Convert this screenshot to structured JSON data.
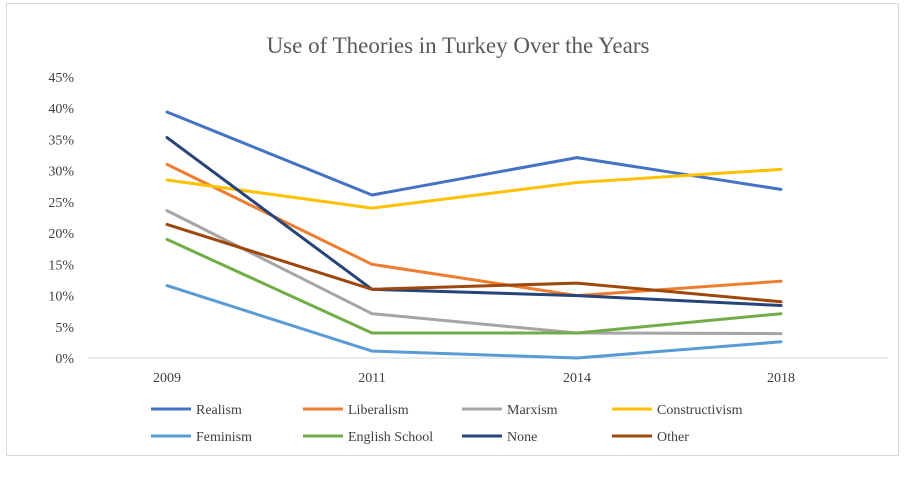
{
  "chart_data": {
    "type": "line",
    "title": "Use of Theories in Turkey Over the Years",
    "xlabel": "",
    "ylabel": "",
    "categories": [
      "2009",
      "2011",
      "2014",
      "2018"
    ],
    "ylim": [
      0,
      45
    ],
    "yticks": [
      "0%",
      "5%",
      "10%",
      "15%",
      "20%",
      "25%",
      "30%",
      "35%",
      "40%",
      "45%"
    ],
    "grid": false,
    "legend_position": "bottom",
    "series": [
      {
        "name": "Realism",
        "color": "#4472C4",
        "values": [
          39.4,
          26.1,
          32.1,
          27.0
        ]
      },
      {
        "name": "Liberalism",
        "color": "#ED7D31",
        "values": [
          31.0,
          15.0,
          10.0,
          12.3
        ]
      },
      {
        "name": "Marxism",
        "color": "#A5A5A5",
        "values": [
          23.6,
          7.1,
          4.0,
          3.9
        ]
      },
      {
        "name": "Constructivism",
        "color": "#FFC000",
        "values": [
          28.5,
          24.0,
          28.1,
          30.2
        ]
      },
      {
        "name": "Feminism",
        "color": "#5B9BD5",
        "values": [
          11.6,
          1.1,
          0.0,
          2.6
        ]
      },
      {
        "name": "English School",
        "color": "#70AD47",
        "values": [
          19.0,
          4.0,
          4.0,
          7.1
        ]
      },
      {
        "name": "None",
        "color": "#264478",
        "values": [
          35.3,
          11.0,
          10.0,
          8.4
        ]
      },
      {
        "name": "Other",
        "color": "#9E480E",
        "values": [
          21.4,
          11.0,
          12.0,
          9.0
        ]
      }
    ]
  }
}
